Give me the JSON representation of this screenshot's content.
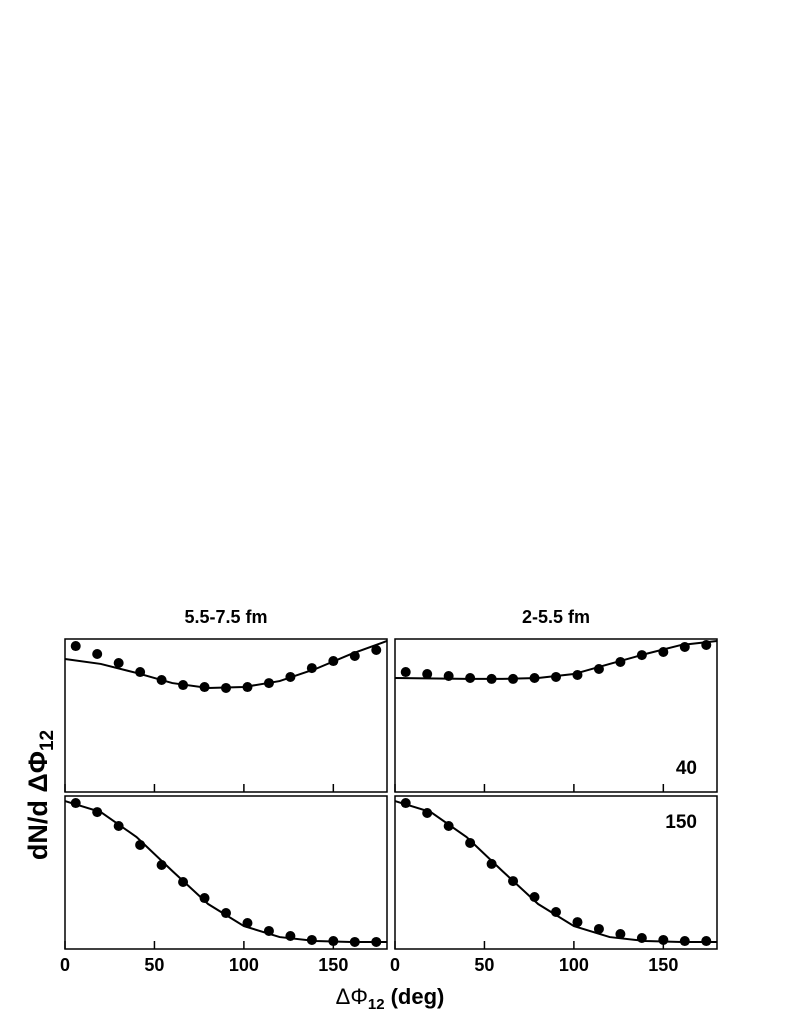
{
  "figure": {
    "y_label": "dN/d ΔΦ",
    "y_label_sub": "12",
    "x_label": "ΔΦ",
    "x_label_sub": "12",
    "x_label_unit": "(deg)"
  },
  "chart_data": [
    {
      "type": "scatter",
      "title": "5.5-7.5 fm",
      "xlim": [
        0,
        180
      ],
      "ylim": [
        0,
        100
      ],
      "xticks": [
        0,
        50,
        100,
        150
      ],
      "xtick_labels": false,
      "series": [
        {
          "mode": "markers",
          "color": "#000000",
          "x": [
            6,
            18,
            30,
            42,
            54,
            66,
            78,
            90,
            102,
            114,
            126,
            138,
            150,
            162,
            174
          ],
          "values": [
            95.4,
            90.2,
            84.3,
            78.4,
            73.2,
            69.9,
            68.6,
            68.0,
            68.6,
            71.2,
            75.2,
            81.0,
            85.6,
            88.9,
            92.8
          ]
        },
        {
          "mode": "line",
          "color": "#000000",
          "x": [
            0,
            20,
            40,
            60,
            80,
            100,
            120,
            140,
            160,
            180
          ],
          "values": [
            86.9,
            83.7,
            77.8,
            71.2,
            68.0,
            68.6,
            72.5,
            80.4,
            90.2,
            98.7
          ]
        }
      ]
    },
    {
      "type": "scatter",
      "title": "2-5.5 fm",
      "annotation": "40",
      "annotation_corner": "lower right",
      "xlim": [
        0,
        180
      ],
      "ylim": [
        0,
        100
      ],
      "xticks": [
        0,
        50,
        100,
        150
      ],
      "xtick_labels": false,
      "series": [
        {
          "mode": "markers",
          "color": "#000000",
          "x": [
            6,
            18,
            30,
            42,
            54,
            66,
            78,
            90,
            102,
            114,
            126,
            138,
            150,
            162,
            174
          ],
          "values": [
            78.4,
            77.1,
            75.8,
            74.5,
            73.9,
            73.9,
            74.5,
            75.2,
            76.5,
            80.4,
            85.0,
            89.5,
            91.5,
            94.8,
            96.1
          ]
        },
        {
          "mode": "line",
          "color": "#000000",
          "x": [
            0,
            40,
            60,
            80,
            100,
            120,
            140,
            160,
            180
          ],
          "values": [
            74.5,
            73.9,
            73.9,
            74.5,
            77.1,
            83.7,
            90.2,
            96.1,
            98.7
          ]
        }
      ]
    },
    {
      "type": "scatter",
      "xlim": [
        0,
        180
      ],
      "ylim": [
        0,
        100
      ],
      "xticks": [
        0,
        50,
        100,
        150
      ],
      "xtick_labels": true,
      "series": [
        {
          "mode": "markers",
          "color": "#000000",
          "x": [
            6,
            18,
            30,
            42,
            54,
            66,
            78,
            90,
            102,
            114,
            126,
            138,
            150,
            162,
            174
          ],
          "values": [
            95.4,
            89.5,
            80.4,
            68.0,
            54.9,
            43.8,
            33.3,
            23.5,
            17.0,
            11.8,
            8.5,
            5.9,
            5.2,
            4.6,
            4.6
          ]
        },
        {
          "mode": "line",
          "color": "#000000",
          "x": [
            0,
            20,
            40,
            60,
            80,
            100,
            120,
            140,
            160,
            180
          ],
          "values": [
            96.7,
            89.5,
            73.2,
            51.0,
            29.4,
            15.0,
            7.8,
            5.2,
            4.6,
            4.6
          ]
        }
      ]
    },
    {
      "type": "scatter",
      "annotation": "150",
      "annotation_corner": "upper right",
      "xlim": [
        0,
        180
      ],
      "ylim": [
        0,
        100
      ],
      "xticks": [
        0,
        50,
        100,
        150
      ],
      "xtick_labels": true,
      "series": [
        {
          "mode": "markers",
          "color": "#000000",
          "x": [
            6,
            18,
            30,
            42,
            54,
            66,
            78,
            90,
            102,
            114,
            126,
            138,
            150,
            162,
            174
          ],
          "values": [
            95.4,
            88.9,
            80.4,
            69.3,
            55.6,
            44.4,
            34.0,
            24.2,
            17.6,
            13.1,
            9.8,
            7.2,
            5.9,
            5.2,
            5.2
          ]
        },
        {
          "mode": "line",
          "color": "#000000",
          "x": [
            0,
            20,
            40,
            60,
            80,
            100,
            120,
            140,
            160,
            180
          ],
          "values": [
            96.7,
            89.5,
            73.2,
            51.0,
            29.4,
            15.0,
            7.8,
            5.2,
            4.6,
            4.6
          ]
        }
      ]
    }
  ]
}
